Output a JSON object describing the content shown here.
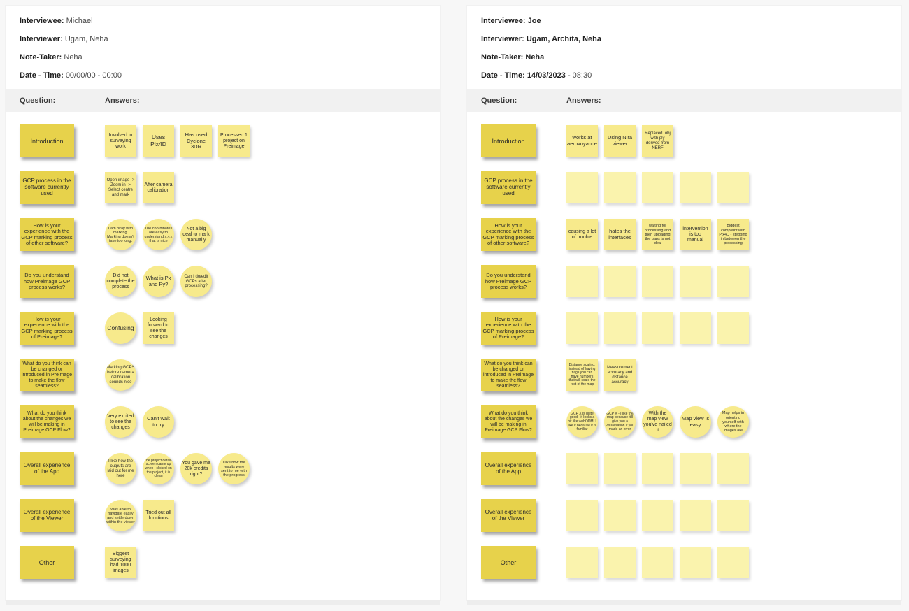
{
  "boards": [
    {
      "side": "left",
      "header": [
        {
          "label": "Interviewee:",
          "value": "Michael"
        },
        {
          "label": "Interviewer:",
          "value": "Ugam, Neha"
        },
        {
          "label": "Note-Taker:",
          "value": "Neha"
        },
        {
          "label": "Date - Time:",
          "value": "00/00/00 - 00:00"
        }
      ],
      "columns": {
        "question": "Question:",
        "answers": "Answers:"
      },
      "rows": [
        {
          "question": "Introduction",
          "answers": [
            {
              "shape": "square",
              "text": "Involved in surveying work"
            },
            {
              "shape": "square",
              "text": "Uses Pix4D"
            },
            {
              "shape": "square",
              "text": "Has used Cyclone 3DR"
            },
            {
              "shape": "square",
              "text": "Processed 1 project on Preimage"
            }
          ]
        },
        {
          "question": "GCP process in the software currently used",
          "answers": [
            {
              "shape": "square",
              "text": "Open image -> Zoom in -> Select centre and mark"
            },
            {
              "shape": "square",
              "text": "After camera calibration"
            }
          ]
        },
        {
          "question": "How is your experience with the GCP marking process of other software?",
          "answers": [
            {
              "shape": "circle",
              "text": "I am okay with marking. Marking doesn't take too long."
            },
            {
              "shape": "circle",
              "text": "The coordinates are easy to understand x,y,z that is nice"
            },
            {
              "shape": "circle",
              "text": "Not a big deal to mark manually"
            }
          ]
        },
        {
          "question": "Do you understand how Preimage GCP process works?",
          "answers": [
            {
              "shape": "circle",
              "text": "Did not complete the process"
            },
            {
              "shape": "circle",
              "text": "What is Px and Py?"
            },
            {
              "shape": "circle",
              "text": "Can I do/edit GCPs after processing?"
            }
          ]
        },
        {
          "question": "How is your experience with the GCP marking process of Preimage?",
          "answers": [
            {
              "shape": "circle",
              "text": "Confusing"
            },
            {
              "shape": "square",
              "text": "Looking forward to see the changes"
            }
          ]
        },
        {
          "question": "What do you think can be changed or introduced in Preimage to make the flow seamless?",
          "answers": [
            {
              "shape": "circle",
              "text": "Marking GCPS before camera calibration sounds nice"
            }
          ]
        },
        {
          "question": "What do you think about the changes we will be making in Preimage GCP Flow?",
          "answers": [
            {
              "shape": "circle",
              "text": "Very excited to see the changes"
            },
            {
              "shape": "circle",
              "text": "Can't wait to try"
            }
          ]
        },
        {
          "question": "Overall experience of the App",
          "answers": [
            {
              "shape": "circle",
              "text": "I like how the outputs are laid out for me here"
            },
            {
              "shape": "circle",
              "text": "The project details screen came up when I clicked on the project, it is clean"
            },
            {
              "shape": "circle",
              "text": "You gave me 20k credits right?"
            },
            {
              "shape": "circle",
              "text": "I like how the results were sent to me with the progress"
            }
          ]
        },
        {
          "question": "Overall experience of the Viewer",
          "answers": [
            {
              "shape": "circle",
              "text": "Was able to navigate easily and settle down within the viewer"
            },
            {
              "shape": "square",
              "text": "Tried out all functions"
            }
          ]
        },
        {
          "question": "Other",
          "answers": [
            {
              "shape": "square",
              "text": "Biggest surveying had 1000 images"
            }
          ]
        }
      ]
    },
    {
      "side": "right",
      "header": [
        {
          "label": "Interviewee:",
          "bold_value": "Joe"
        },
        {
          "label": "Interviewer:",
          "bold_value": "Ugam, Archita, Neha"
        },
        {
          "label": "Note-Taker:",
          "bold_value": "Neha"
        },
        {
          "label": "Date - Time:",
          "bold_value": "14/03/2023",
          "value": "- 08:30"
        }
      ],
      "columns": {
        "question": "Question:",
        "answers": "Answers:"
      },
      "rows": [
        {
          "question": "Introduction",
          "answers": [
            {
              "shape": "square",
              "text": "works at aerovoyance"
            },
            {
              "shape": "square",
              "text": "Using Nira viewer"
            },
            {
              "shape": "square",
              "text": "Replaced .obj with ply derived from NERF"
            }
          ]
        },
        {
          "question": "GCP process in the software currently used",
          "answers": [
            {
              "shape": "square",
              "text": ""
            },
            {
              "shape": "square",
              "text": ""
            },
            {
              "shape": "square",
              "text": ""
            },
            {
              "shape": "square",
              "text": ""
            },
            {
              "shape": "square",
              "text": ""
            }
          ]
        },
        {
          "question": "How is your experience with the GCP marking process of other software?",
          "answers": [
            {
              "shape": "square",
              "text": "causing a lot of trouble"
            },
            {
              "shape": "square",
              "text": "hates the interfaces"
            },
            {
              "shape": "square",
              "text": "waiting for processing and then uploading the gaps is not ideal"
            },
            {
              "shape": "square",
              "text": "intervention is too manual"
            },
            {
              "shape": "square",
              "text": "Biggest complaint with Pix4D - stepping in between the processing"
            }
          ]
        },
        {
          "question": "Do you understand how Preimage GCP process works?",
          "answers": [
            {
              "shape": "square",
              "text": ""
            },
            {
              "shape": "square",
              "text": ""
            },
            {
              "shape": "square",
              "text": ""
            },
            {
              "shape": "square",
              "text": ""
            },
            {
              "shape": "square",
              "text": ""
            }
          ]
        },
        {
          "question": "How is your experience with the GCP marking process of Preimage?",
          "answers": [
            {
              "shape": "square",
              "text": ""
            },
            {
              "shape": "square",
              "text": ""
            },
            {
              "shape": "square",
              "text": ""
            },
            {
              "shape": "square",
              "text": ""
            },
            {
              "shape": "square",
              "text": ""
            }
          ]
        },
        {
          "question": "What do you think can be changed or introduced in Preimage to make the flow seamless?",
          "answers": [
            {
              "shape": "square",
              "text": "Distance scaling: instead of having flags you can have numbers that will scale the rest of the map"
            },
            {
              "shape": "square",
              "text": "Measurement accuracy and distance accuracy"
            }
          ]
        },
        {
          "question": "What do you think about the changes we will be making in Preimage GCP Flow?",
          "answers": [
            {
              "shape": "circle",
              "text": "GCP X is quite good - it looks a bit like webODM. I like it because it is familiar"
            },
            {
              "shape": "circle",
              "text": "GCP X - I like the map because it'll give you a visualisation if you made an error"
            },
            {
              "shape": "circle",
              "text": "With the map view you've nailed it"
            },
            {
              "shape": "circle",
              "text": "Map view is easy"
            },
            {
              "shape": "circle",
              "text": "Map helps in orienting yourself with where the images are"
            }
          ]
        },
        {
          "question": "Overall experience of the App",
          "answers": [
            {
              "shape": "square",
              "text": ""
            },
            {
              "shape": "square",
              "text": ""
            },
            {
              "shape": "square",
              "text": ""
            },
            {
              "shape": "square",
              "text": ""
            },
            {
              "shape": "square",
              "text": ""
            }
          ]
        },
        {
          "question": "Overall experience of the Viewer",
          "answers": [
            {
              "shape": "square",
              "text": ""
            },
            {
              "shape": "square",
              "text": ""
            },
            {
              "shape": "square",
              "text": ""
            },
            {
              "shape": "square",
              "text": ""
            },
            {
              "shape": "square",
              "text": ""
            }
          ]
        },
        {
          "question": "Other",
          "answers": [
            {
              "shape": "square",
              "text": ""
            },
            {
              "shape": "square",
              "text": ""
            },
            {
              "shape": "square",
              "text": ""
            },
            {
              "shape": "square",
              "text": ""
            },
            {
              "shape": "square",
              "text": ""
            }
          ]
        }
      ]
    }
  ]
}
